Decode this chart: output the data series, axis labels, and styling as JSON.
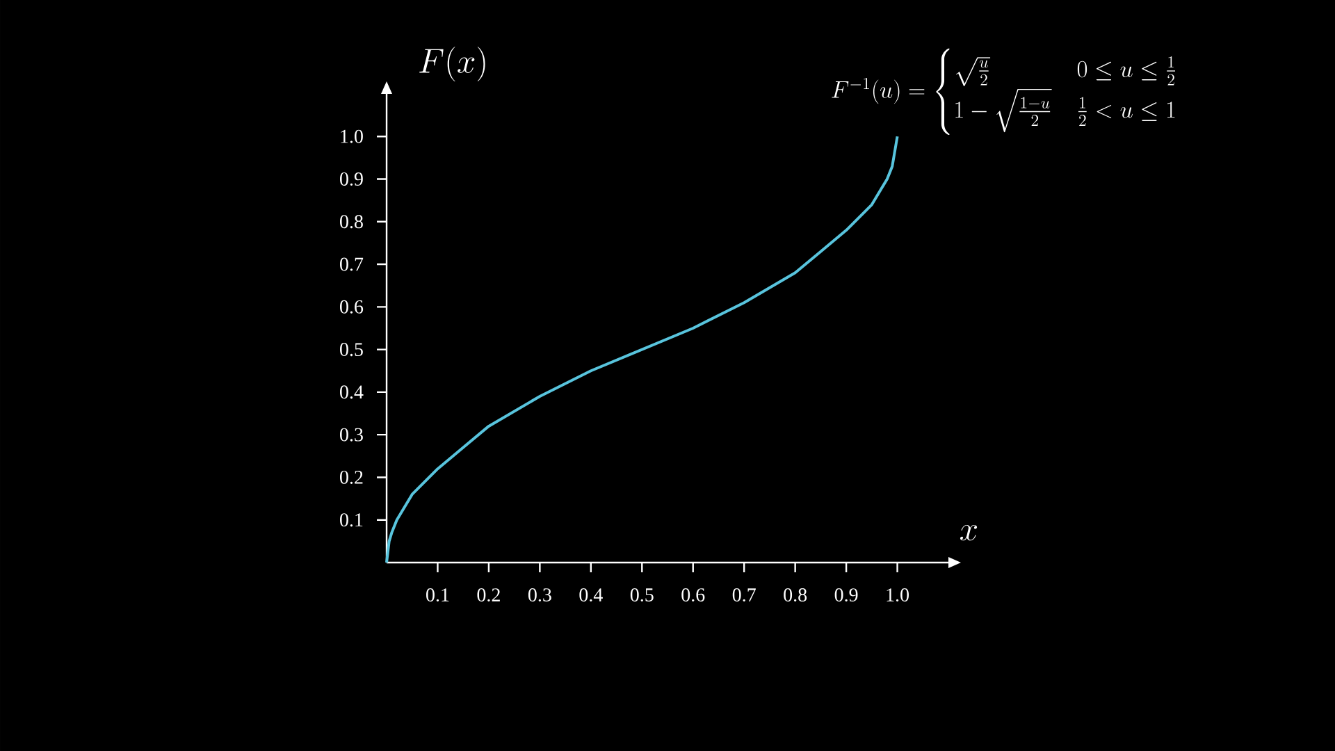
{
  "chart_data": {
    "type": "line",
    "xlabel": "x",
    "ylabel": "F(x)",
    "annotations": [
      "F^{-1}(u) = \\begin{cases} \\sqrt{\\frac{u}{2}} & 0 \\leq u \\leq \\frac{1}{2} \\\\ 1 - \\sqrt{\\frac{1-u}{2}} & \\frac{1}{2} < u \\leq 1 \\end{cases}"
    ],
    "x": [
      0,
      0.005,
      0.01,
      0.02,
      0.05,
      0.1,
      0.15,
      0.2,
      0.3,
      0.4,
      0.5,
      0.6,
      0.7,
      0.8,
      0.85,
      0.9,
      0.95,
      0.98,
      0.99,
      1.0
    ],
    "values": [
      0,
      0.05,
      0.07,
      0.1,
      0.16,
      0.22,
      0.27,
      0.32,
      0.39,
      0.45,
      0.5,
      0.55,
      0.61,
      0.68,
      0.73,
      0.78,
      0.84,
      0.9,
      0.93,
      1.0
    ],
    "color": "#58c4dd",
    "xlim": [
      0,
      1.1
    ],
    "ylim": [
      0,
      1.1
    ],
    "xticks": [
      0.1,
      0.2,
      0.3,
      0.4,
      0.5,
      0.6,
      0.7,
      0.8,
      0.9,
      {
        "value": 1,
        "label": "1.0"
      }
    ],
    "yticks": [
      0.1,
      0.2,
      0.3,
      0.4,
      0.5,
      0.6,
      0.7,
      0.8,
      0.9,
      {
        "value": 1,
        "label": "1.0"
      }
    ]
  }
}
